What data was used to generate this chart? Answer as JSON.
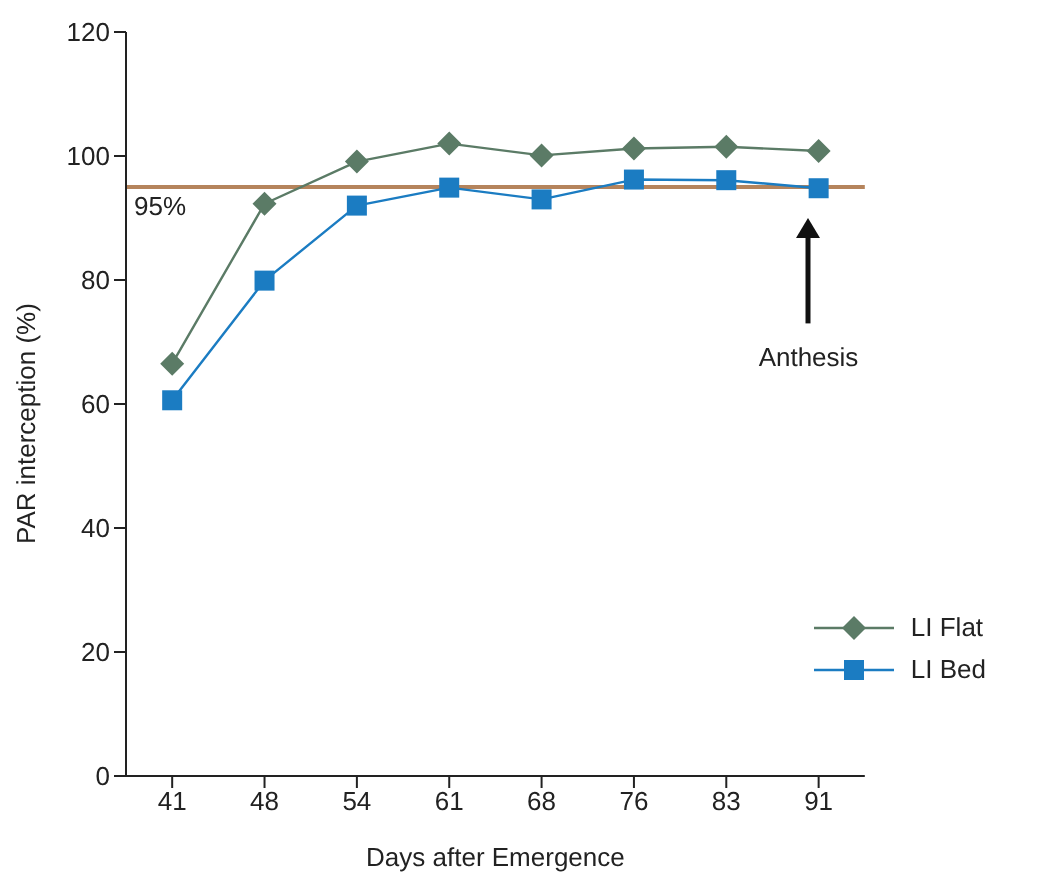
{
  "chart_data": {
    "type": "line",
    "xlabel": "Days after Emergence",
    "ylabel": "PAR interception (%)",
    "categories": [
      "41",
      "48",
      "54",
      "61",
      "68",
      "76",
      "83",
      "91"
    ],
    "series": [
      {
        "name": "LI Flat",
        "color": "#5b7b66",
        "marker": "diamond",
        "values": [
          66.5,
          92.3,
          99.1,
          102,
          100.1,
          101.2,
          101.5,
          100.8
        ]
      },
      {
        "name": "LI Bed",
        "color": "#1b7cc2",
        "marker": "square",
        "values": [
          60.6,
          79.9,
          92,
          94.9,
          93,
          96.2,
          96.1,
          94.8
        ]
      }
    ],
    "ylim": [
      0,
      120
    ],
    "yticks": [
      0,
      20,
      40,
      60,
      80,
      100,
      120
    ],
    "grid": false,
    "legend": "bottom right",
    "line_style": "solid",
    "ref_lines": [
      {
        "axis": "y",
        "value": 95,
        "label": "95%",
        "color": "#b5845c"
      }
    ],
    "annotations": [
      "Anthesis"
    ]
  }
}
